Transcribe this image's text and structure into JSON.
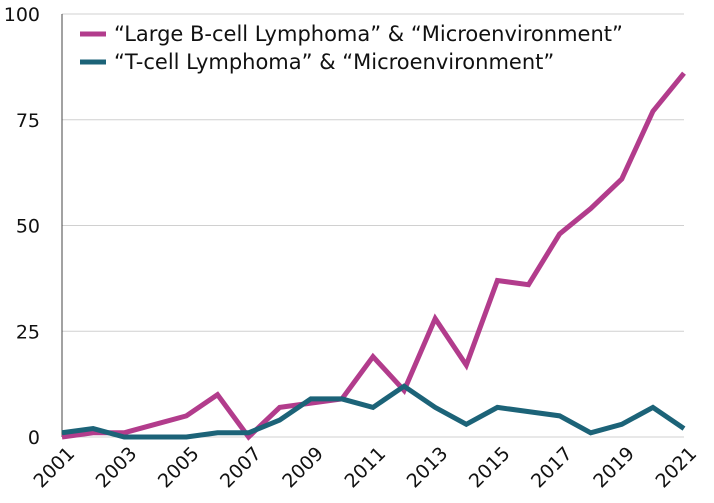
{
  "chart_data": {
    "type": "line",
    "title": "",
    "xlabel": "",
    "ylabel": "",
    "x": [
      2001,
      2002,
      2003,
      2004,
      2005,
      2006,
      2007,
      2008,
      2009,
      2010,
      2011,
      2012,
      2013,
      2014,
      2015,
      2016,
      2017,
      2018,
      2019,
      2020,
      2021
    ],
    "x_tick_labels": [
      "2001",
      "2003",
      "2005",
      "2007",
      "2009",
      "2011",
      "2013",
      "2015",
      "2017",
      "2019",
      "2021"
    ],
    "x_tick_values": [
      2001,
      2003,
      2005,
      2007,
      2009,
      2011,
      2013,
      2015,
      2017,
      2019,
      2021
    ],
    "y_ticks": [
      0,
      25,
      50,
      75,
      100
    ],
    "y_tick_labels": [
      "0",
      "25",
      "50",
      "75",
      "100"
    ],
    "ylim": [
      0,
      100
    ],
    "grid": "horizontal",
    "legend_position": "top",
    "series": [
      {
        "name": "“Large B-cell Lymphoma” & “Microenvironment”",
        "color": "#b23c8c",
        "values": [
          0,
          1,
          1,
          3,
          5,
          10,
          0,
          7,
          8,
          9,
          19,
          11,
          28,
          17,
          37,
          36,
          48,
          54,
          61,
          77,
          86
        ]
      },
      {
        "name": "“T-cell Lymphoma” & “Microenvironment”",
        "color": "#1c6378",
        "values": [
          1,
          2,
          0,
          0,
          0,
          1,
          1,
          4,
          9,
          9,
          7,
          12,
          7,
          3,
          7,
          6,
          5,
          1,
          3,
          7,
          2
        ]
      }
    ]
  }
}
